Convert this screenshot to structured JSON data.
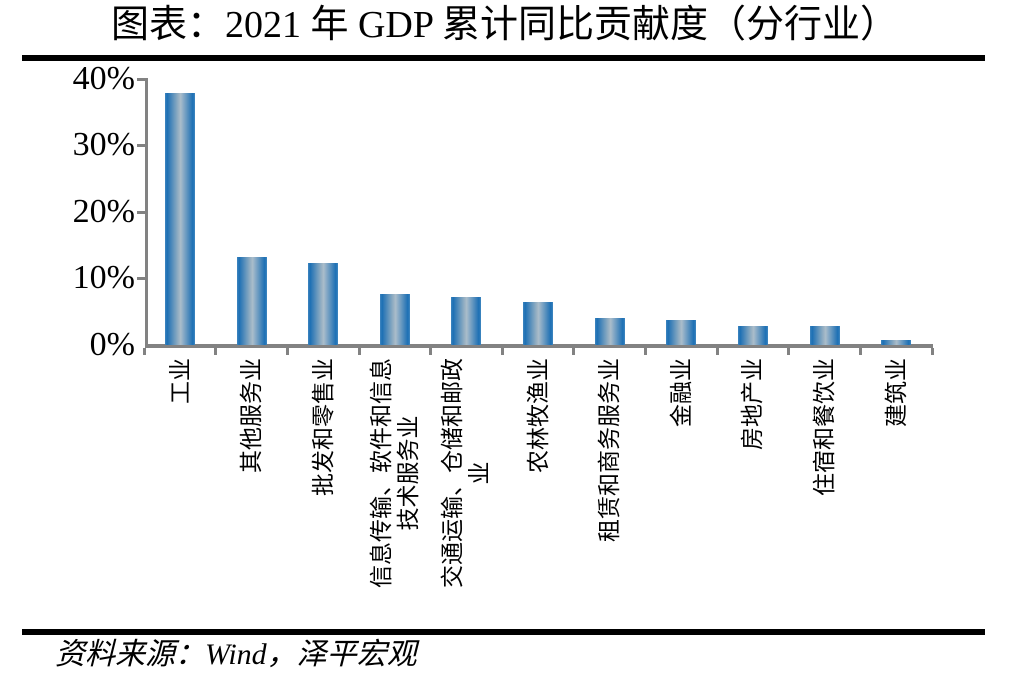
{
  "title": "图表：2021 年 GDP 累计同比贡献度（分行业）",
  "source_note": "资料来源：Wind，泽平宏观",
  "chart_data": {
    "type": "bar",
    "title": "图表：2021 年 GDP 累计同比贡献度（分行业）",
    "categories": [
      "工业",
      "其他服务业",
      "批发和零售业",
      "信息传输、软件和信息技术服务业",
      "交通运输、仓储和邮政业",
      "农林牧渔业",
      "租赁和商务服务业",
      "金融业",
      "房地产业",
      "住宿和餐饮业",
      "建筑业"
    ],
    "category_label_lines": [
      [
        "工业"
      ],
      [
        "其他服务业"
      ],
      [
        "批发和零售业"
      ],
      [
        "信息传输、软件和信息",
        "技术服务业"
      ],
      [
        "交通运输、仓储和邮政",
        "业"
      ],
      [
        "农林牧渔业"
      ],
      [
        "租赁和商务服务业"
      ],
      [
        "金融业"
      ],
      [
        "房地产业"
      ],
      [
        "住宿和餐饮业"
      ],
      [
        "建筑业"
      ]
    ],
    "values": [
      37.9,
      13.2,
      12.3,
      7.7,
      7.2,
      6.5,
      4.1,
      3.8,
      2.9,
      2.8,
      0.8
    ],
    "unit": "%",
    "xlabel": "",
    "ylabel": "",
    "ylim": [
      0,
      40
    ],
    "yticks": [
      {
        "label": "40%",
        "value": 40
      },
      {
        "label": "30%",
        "value": 30
      },
      {
        "label": "20%",
        "value": 20
      },
      {
        "label": "10%",
        "value": 10
      },
      {
        "label": "0%",
        "value": 0
      }
    ],
    "grid": false,
    "legend": false,
    "bar_edge_color": "#1c6fb4",
    "bar_center_color": "#aabdcb",
    "axis_color": "#828282",
    "rule_color": "#000000",
    "source": "资料来源：Wind，泽平宏观"
  }
}
